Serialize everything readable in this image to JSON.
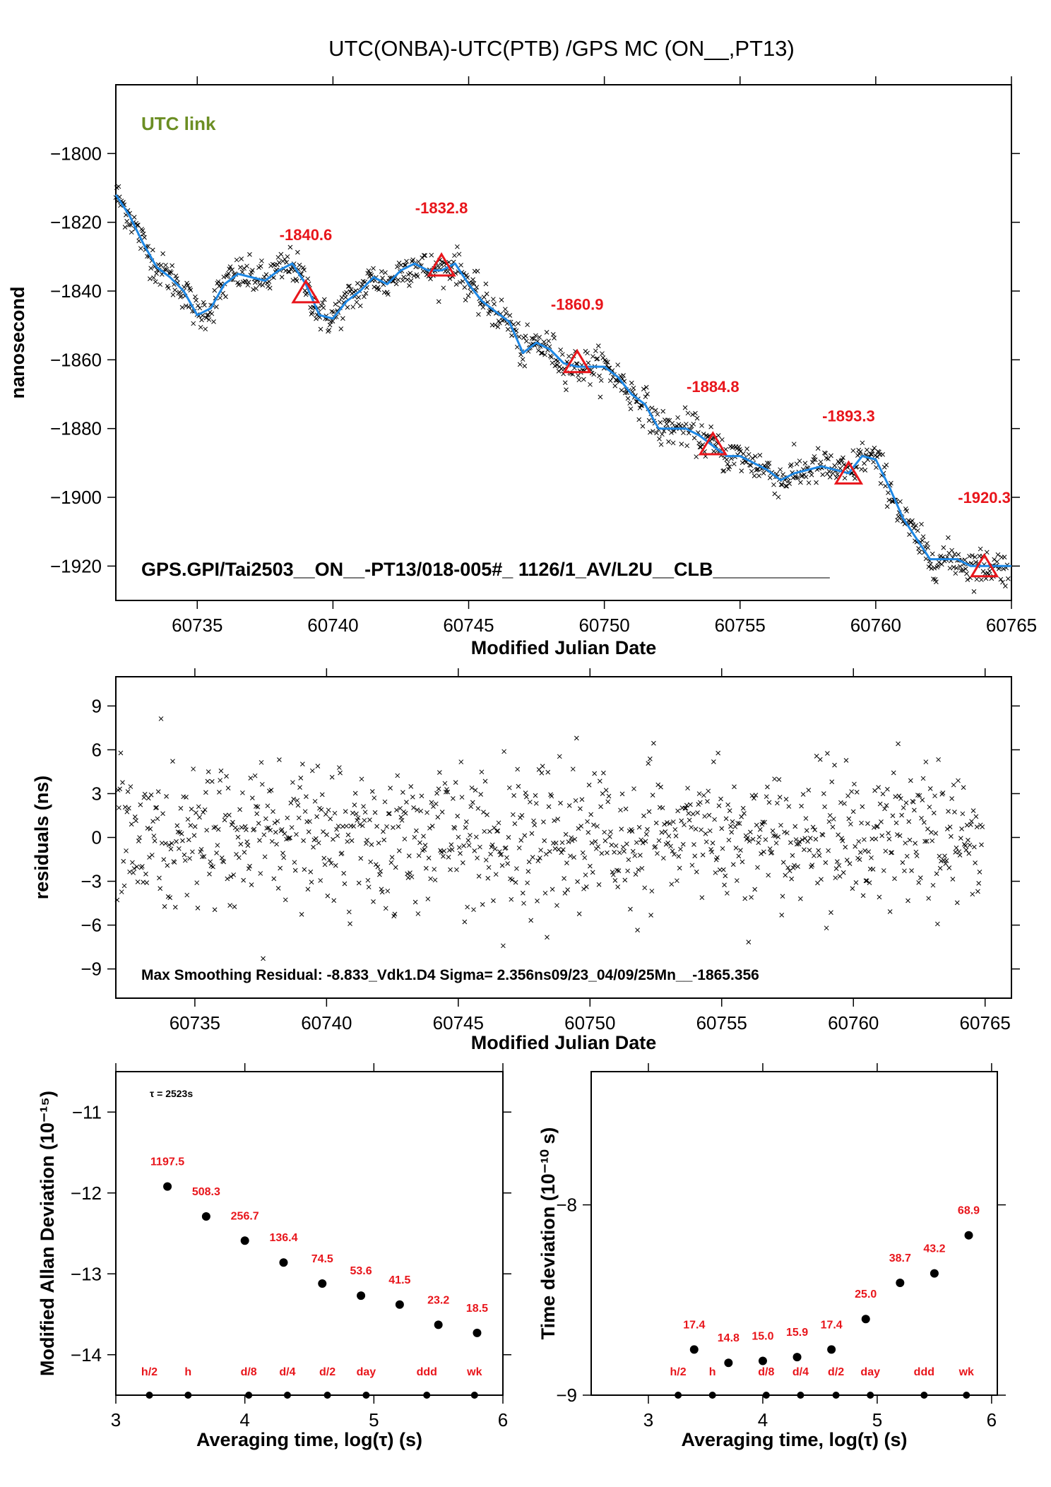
{
  "page_title": "UTC(ONBA)-UTC(PTB)  /GPS  MC  (ON__,PT13)",
  "colors": {
    "annotation": "#e8151b",
    "smooth_line": "#1e88e5",
    "label_green": "#6b8e23",
    "points": "#000000"
  },
  "chart_data": [
    {
      "type": "scatter",
      "id": "main",
      "xlabel": "Modified Julian Date",
      "ylabel": "nanosecond",
      "xlim": [
        60732,
        60765
      ],
      "ylim": [
        -1930,
        -1780
      ],
      "xticks": [
        60735,
        60740,
        60745,
        60750,
        60755,
        60760,
        60765
      ],
      "yticks": [
        -1800,
        -1820,
        -1840,
        -1860,
        -1880,
        -1900,
        -1920
      ],
      "corner_label": "UTC link",
      "info_text": "GPS.GPI/Tai2503__ON__-PT13/018-005#_  1126/1_AV/L2U__CLB___________",
      "smooth_curve": {
        "x": [
          60732,
          60732.5,
          60733,
          60733.5,
          60734,
          60734.5,
          60735,
          60735.5,
          60736,
          60736.5,
          60737,
          60737.5,
          60738,
          60738.5,
          60739,
          60739.5,
          60740,
          60740.5,
          60741,
          60741.5,
          60742,
          60742.5,
          60743,
          60743.5,
          60744,
          60744.5,
          60745,
          60745.5,
          60746,
          60746.5,
          60747,
          60747.5,
          60748,
          60748.5,
          60749,
          60749.5,
          60750,
          60750.5,
          60751,
          60751.5,
          60752,
          60752.5,
          60753,
          60753.5,
          60754,
          60754.5,
          60755,
          60755.5,
          60756,
          60756.5,
          60757,
          60757.5,
          60758,
          60758.5,
          60759,
          60759.5,
          60760,
          60760.5,
          60761,
          60761.5,
          60762,
          60762.5,
          60763,
          60763.5,
          60764,
          60764.5,
          60765
        ],
        "y": [
          -1812,
          -1818,
          -1826,
          -1833,
          -1836,
          -1840,
          -1847,
          -1845,
          -1838,
          -1835,
          -1836,
          -1837,
          -1834,
          -1832,
          -1838,
          -1847,
          -1848,
          -1843,
          -1840,
          -1836,
          -1838,
          -1834,
          -1832,
          -1834,
          -1834,
          -1832,
          -1838,
          -1843,
          -1846,
          -1849,
          -1858,
          -1855,
          -1857,
          -1861,
          -1862,
          -1862,
          -1862,
          -1865,
          -1870,
          -1873,
          -1880,
          -1880,
          -1880,
          -1882,
          -1885,
          -1888,
          -1888,
          -1890,
          -1892,
          -1895,
          -1893,
          -1892,
          -1891,
          -1892,
          -1893,
          -1888,
          -1889,
          -1897,
          -1906,
          -1912,
          -1918,
          -1918,
          -1918,
          -1920,
          -1920,
          -1920,
          -1920
        ]
      },
      "markers": [
        {
          "x": 60739,
          "y": -1840.6,
          "label": "-1840.6"
        },
        {
          "x": 60744,
          "y": -1832.8,
          "label": "-1832.8"
        },
        {
          "x": 60749,
          "y": -1860.9,
          "label": "-1860.9"
        },
        {
          "x": 60754,
          "y": -1884.8,
          "label": "-1884.8"
        },
        {
          "x": 60759,
          "y": -1893.3,
          "label": "-1893.3"
        },
        {
          "x": 60764,
          "y": -1920.3,
          "label": "-1920.3"
        }
      ]
    },
    {
      "type": "scatter",
      "id": "residuals",
      "xlabel": "Modified Julian Date",
      "ylabel": "residuals (ns)",
      "xlim": [
        60732,
        60766
      ],
      "ylim": [
        -11,
        11
      ],
      "xticks": [
        60735,
        60740,
        60745,
        60750,
        60755,
        60760,
        60765
      ],
      "yticks": [
        9,
        6,
        3,
        0,
        -3,
        -6,
        -9
      ],
      "info_text": "Max Smoothing Residual: -8.833_Vdk1.D4  Sigma= 2.356ns09/23_04/09/25Mn__-1865.356",
      "sigma": 2.356
    },
    {
      "type": "scatter",
      "id": "mdev",
      "xlabel": "Averaging time, log(τ) (s)",
      "ylabel": "Modified Allan Deviation (10⁻¹⁵)",
      "xlim": [
        3,
        6
      ],
      "ylim": [
        -14.5,
        -10.5
      ],
      "xticks": [
        3,
        4,
        5,
        6
      ],
      "yticks": [
        -11,
        -12,
        -13,
        -14
      ],
      "tau_note": "τ = 2523s",
      "points": [
        {
          "x": 3.4,
          "y": -11.92,
          "label": "1197.5"
        },
        {
          "x": 3.7,
          "y": -12.29,
          "label": "508.3"
        },
        {
          "x": 4.0,
          "y": -12.59,
          "label": "256.7"
        },
        {
          "x": 4.3,
          "y": -12.86,
          "label": "136.4"
        },
        {
          "x": 4.6,
          "y": -13.12,
          "label": "74.5"
        },
        {
          "x": 4.9,
          "y": -13.27,
          "label": "53.6"
        },
        {
          "x": 5.2,
          "y": -13.38,
          "label": "41.5"
        },
        {
          "x": 5.5,
          "y": -13.63,
          "label": "23.2"
        },
        {
          "x": 5.8,
          "y": -13.73,
          "label": "18.5"
        }
      ],
      "period_marks": [
        {
          "x": 3.26,
          "label": "h/2"
        },
        {
          "x": 3.56,
          "label": "h"
        },
        {
          "x": 4.03,
          "label": "d/8"
        },
        {
          "x": 4.33,
          "label": "d/4"
        },
        {
          "x": 4.64,
          "label": "d/2"
        },
        {
          "x": 4.94,
          "label": "day"
        },
        {
          "x": 5.41,
          "label": "ddd"
        },
        {
          "x": 5.78,
          "label": "wk"
        }
      ]
    },
    {
      "type": "scatter",
      "id": "tdev",
      "xlabel": "Averaging time, log(τ) (s)",
      "ylabel": "Time deviation (10⁻¹⁰ s)",
      "xlim": [
        2.5,
        6.05
      ],
      "ylim": [
        -9,
        -7.3
      ],
      "xticks": [
        3,
        4,
        5,
        6
      ],
      "yticks": [
        -8,
        -9
      ],
      "points": [
        {
          "x": 3.4,
          "y": -8.76,
          "label": "17.4"
        },
        {
          "x": 3.7,
          "y": -8.83,
          "label": "14.8"
        },
        {
          "x": 4.0,
          "y": -8.82,
          "label": "15.0"
        },
        {
          "x": 4.3,
          "y": -8.8,
          "label": "15.9"
        },
        {
          "x": 4.6,
          "y": -8.76,
          "label": "17.4"
        },
        {
          "x": 4.9,
          "y": -8.6,
          "label": "25.0"
        },
        {
          "x": 5.2,
          "y": -8.41,
          "label": "38.7"
        },
        {
          "x": 5.5,
          "y": -8.36,
          "label": "43.2"
        },
        {
          "x": 5.8,
          "y": -8.16,
          "label": "68.9"
        }
      ],
      "period_marks": [
        {
          "x": 3.26,
          "label": "h/2"
        },
        {
          "x": 3.56,
          "label": "h"
        },
        {
          "x": 4.03,
          "label": "d/8"
        },
        {
          "x": 4.33,
          "label": "d/4"
        },
        {
          "x": 4.64,
          "label": "d/2"
        },
        {
          "x": 4.94,
          "label": "day"
        },
        {
          "x": 5.41,
          "label": "ddd"
        },
        {
          "x": 5.78,
          "label": "wk"
        }
      ]
    }
  ]
}
